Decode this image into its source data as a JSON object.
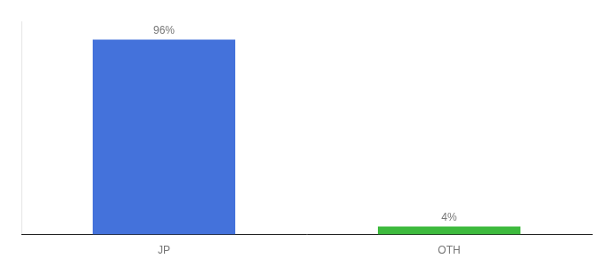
{
  "chart_data": {
    "type": "bar",
    "categories": [
      "JP",
      "OTH"
    ],
    "values": [
      96,
      4
    ],
    "value_labels": [
      "96%",
      "4%"
    ],
    "colors": [
      "#4472db",
      "#3dba3d"
    ],
    "ylim": [
      0,
      105
    ],
    "grid": false,
    "data_labels": true,
    "tick_labels": "x"
  }
}
